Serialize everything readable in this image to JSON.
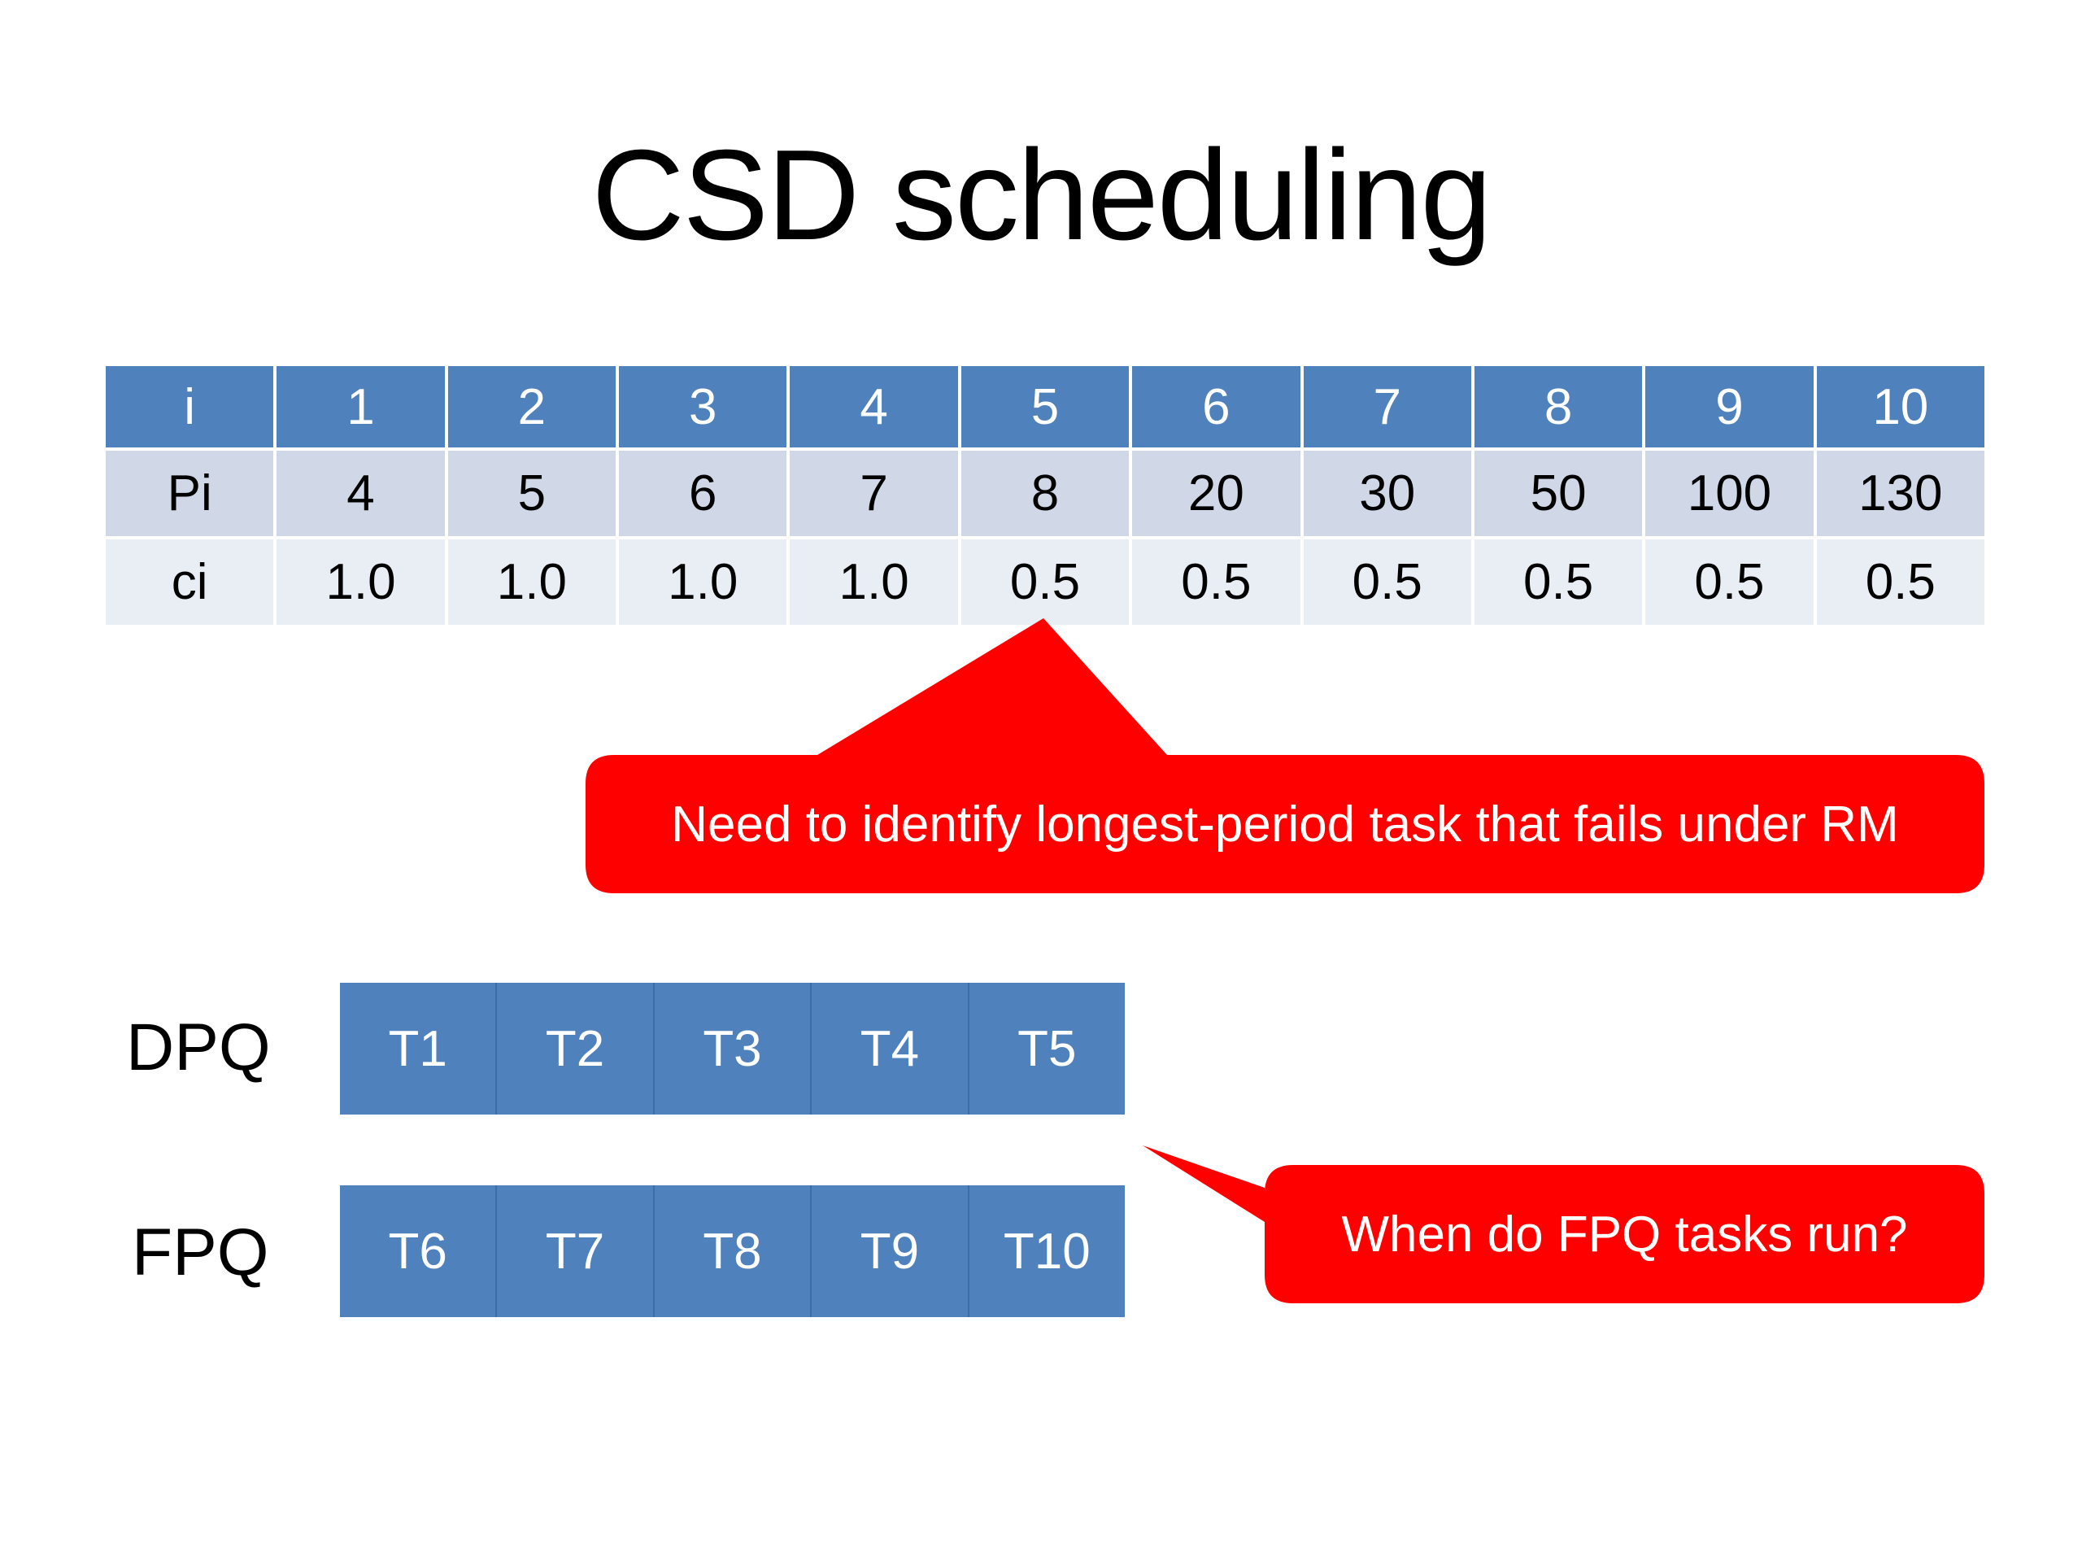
{
  "title": "CSD scheduling",
  "table": {
    "header": [
      "i",
      "1",
      "2",
      "3",
      "4",
      "5",
      "6",
      "7",
      "8",
      "9",
      "10"
    ],
    "rows": [
      [
        "Pi",
        "4",
        "5",
        "6",
        "7",
        "8",
        "20",
        "30",
        "50",
        "100",
        "130"
      ],
      [
        "ci",
        "1.0",
        "1.0",
        "1.0",
        "1.0",
        "0.5",
        "0.5",
        "0.5",
        "0.5",
        "0.5",
        "0.5"
      ]
    ]
  },
  "callouts": {
    "first": "Need to identify longest-period task that fails under RM",
    "second": "When do FPQ tasks run?",
    "color": "#ff0000"
  },
  "queues": {
    "dpq": {
      "label": "DPQ",
      "tasks": [
        "T1",
        "T2",
        "T3",
        "T4",
        "T5"
      ]
    },
    "fpq": {
      "label": "FPQ",
      "tasks": [
        "T6",
        "T7",
        "T8",
        "T9",
        "T10"
      ]
    }
  },
  "colors": {
    "header_blue": "#4f81bd",
    "row_light": "#d0d8e8",
    "row_lighter": "#e9edf4"
  }
}
